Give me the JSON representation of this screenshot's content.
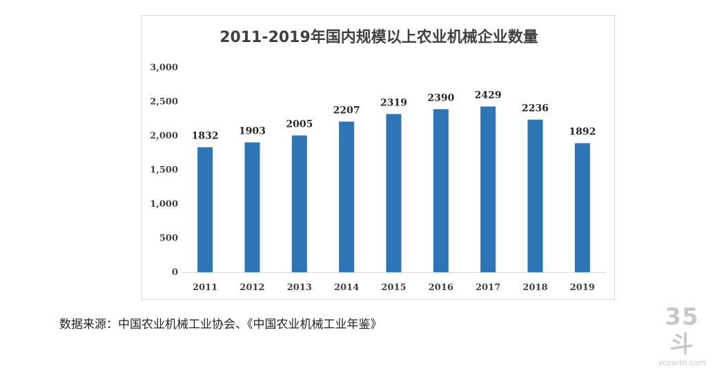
{
  "chart_data": {
    "type": "bar",
    "title": "2011-2019年国内规模以上农业机械企业数量",
    "categories": [
      "2011",
      "2012",
      "2013",
      "2014",
      "2015",
      "2016",
      "2017",
      "2018",
      "2019"
    ],
    "values": [
      1832,
      1903,
      2005,
      2207,
      2319,
      2390,
      2429,
      2236,
      1892
    ],
    "data_labels": [
      "1832",
      "1903",
      "2005",
      "2207",
      "2319",
      "2390",
      "2429",
      "2236",
      "1892"
    ],
    "ylim": [
      0,
      3000
    ],
    "yticks": [
      0,
      500,
      1000,
      1500,
      2000,
      2500,
      3000
    ],
    "ytick_labels": [
      "0",
      "500",
      "1,000",
      "1,500",
      "2,000",
      "2,500",
      "3,000"
    ],
    "xlabel": "",
    "ylabel": "",
    "grid": false,
    "bar_color": "#2e75b6"
  },
  "source_note": "数据来源：中国农业机械工业协会、《中国农业机械工业年鉴》",
  "watermark": {
    "logo": "35斗",
    "url": "vcearth.com"
  }
}
